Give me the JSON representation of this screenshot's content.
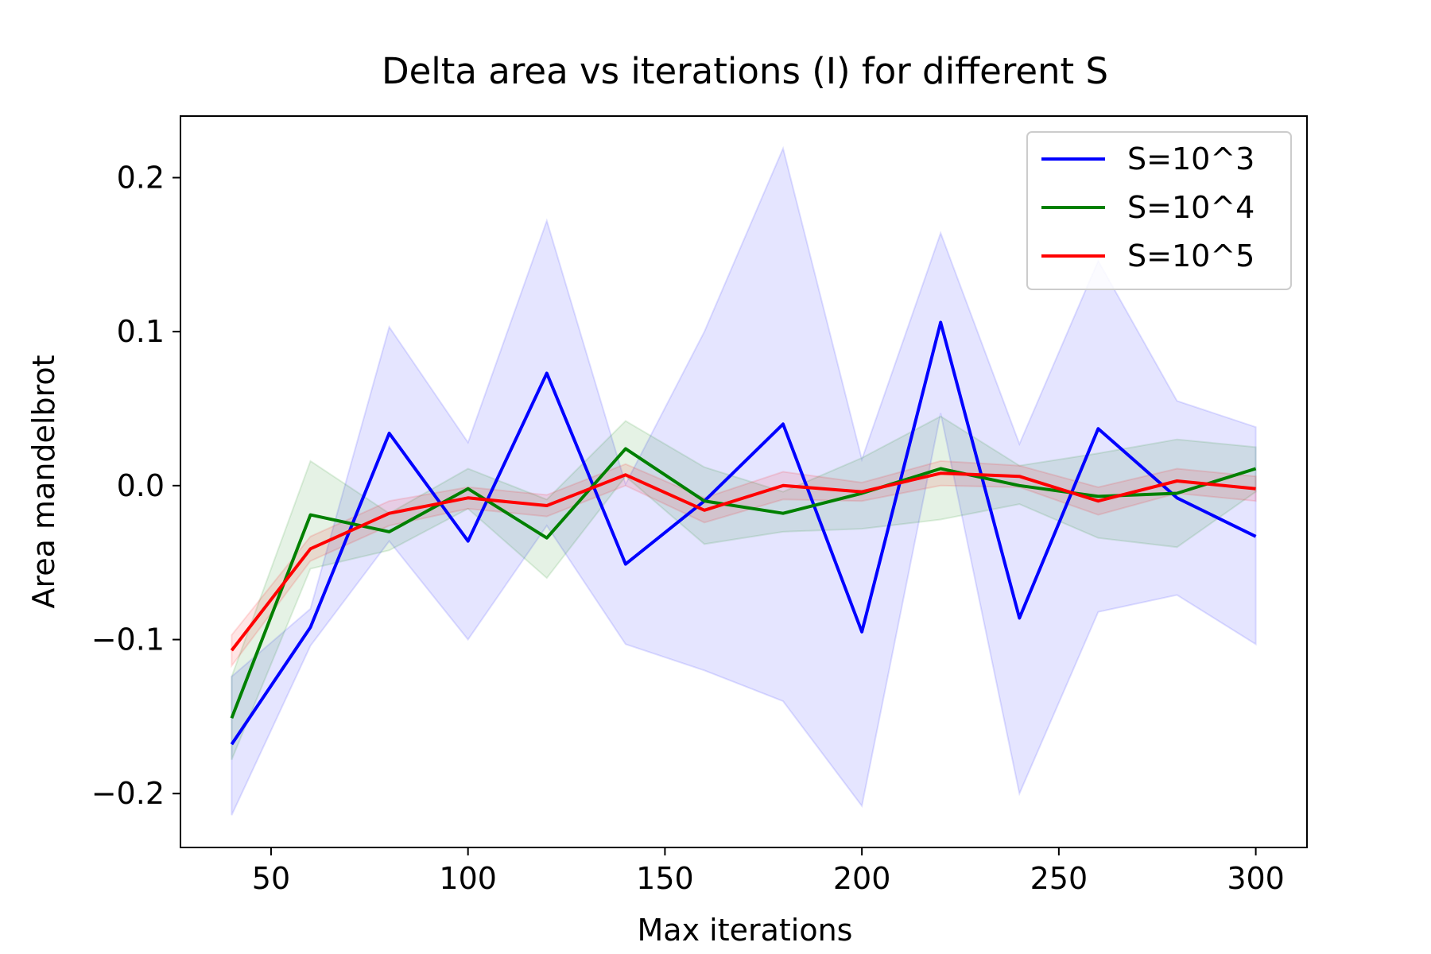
{
  "chart_data": {
    "type": "line",
    "title": "Delta area vs iterations (I) for different S",
    "xlabel": "Max iterations",
    "ylabel": "Area mandelbrot",
    "x": [
      40,
      60,
      80,
      100,
      120,
      140,
      160,
      180,
      200,
      220,
      240,
      260,
      280,
      300
    ],
    "xlim": [
      27,
      313
    ],
    "ylim": [
      -0.235,
      0.24
    ],
    "xticks": [
      50,
      100,
      150,
      200,
      250,
      300
    ],
    "xtick_labels": [
      "50",
      "100",
      "150",
      "200",
      "250",
      "300"
    ],
    "yticks": [
      0.2,
      0.1,
      0.0,
      -0.1,
      -0.2
    ],
    "ytick_labels": [
      "0.2",
      "0.1",
      "0.0",
      "−0.1",
      "−0.2"
    ],
    "legend_position": "top-right",
    "grid": false,
    "series": [
      {
        "name": "S=10^3",
        "color": "#0000ff",
        "band_color": "#0000ff",
        "values": [
          -0.168,
          -0.092,
          0.034,
          -0.036,
          0.073,
          -0.051,
          -0.01,
          0.04,
          -0.095,
          0.106,
          -0.086,
          0.037,
          -0.008,
          -0.033
        ],
        "upper": [
          -0.124,
          -0.08,
          0.103,
          0.028,
          0.172,
          0.001,
          0.1,
          0.219,
          0.017,
          0.164,
          0.027,
          0.146,
          0.055,
          0.038
        ],
        "lower": [
          -0.214,
          -0.104,
          -0.036,
          -0.1,
          -0.026,
          -0.103,
          -0.12,
          -0.14,
          -0.208,
          0.047,
          -0.2,
          -0.082,
          -0.071,
          -0.103
        ]
      },
      {
        "name": "S=10^4",
        "color": "#008000",
        "band_color": "#008000",
        "values": [
          -0.151,
          -0.019,
          -0.03,
          -0.002,
          -0.034,
          0.024,
          -0.01,
          -0.018,
          -0.005,
          0.011,
          0.0,
          -0.007,
          -0.005,
          0.011
        ],
        "upper": [
          -0.124,
          0.016,
          -0.018,
          0.011,
          -0.009,
          0.042,
          0.012,
          -0.004,
          0.018,
          0.045,
          0.013,
          0.021,
          0.03,
          0.025
        ],
        "lower": [
          -0.178,
          -0.054,
          -0.042,
          -0.015,
          -0.06,
          0.006,
          -0.038,
          -0.03,
          -0.028,
          -0.022,
          -0.012,
          -0.034,
          -0.04,
          -0.004
        ]
      },
      {
        "name": "S=10^5",
        "color": "#ff0000",
        "band_color": "#ff0000",
        "values": [
          -0.107,
          -0.041,
          -0.018,
          -0.008,
          -0.013,
          0.007,
          -0.016,
          0.0,
          -0.004,
          0.008,
          0.006,
          -0.01,
          0.003,
          -0.002
        ],
        "upper": [
          -0.097,
          -0.033,
          -0.01,
          -0.001,
          -0.006,
          0.014,
          -0.008,
          0.009,
          0.002,
          0.016,
          0.013,
          -0.001,
          0.011,
          0.006
        ],
        "lower": [
          -0.117,
          -0.049,
          -0.026,
          -0.015,
          -0.02,
          0.0,
          -0.024,
          -0.009,
          -0.01,
          0.0,
          -0.001,
          -0.019,
          -0.005,
          -0.01
        ]
      }
    ]
  }
}
